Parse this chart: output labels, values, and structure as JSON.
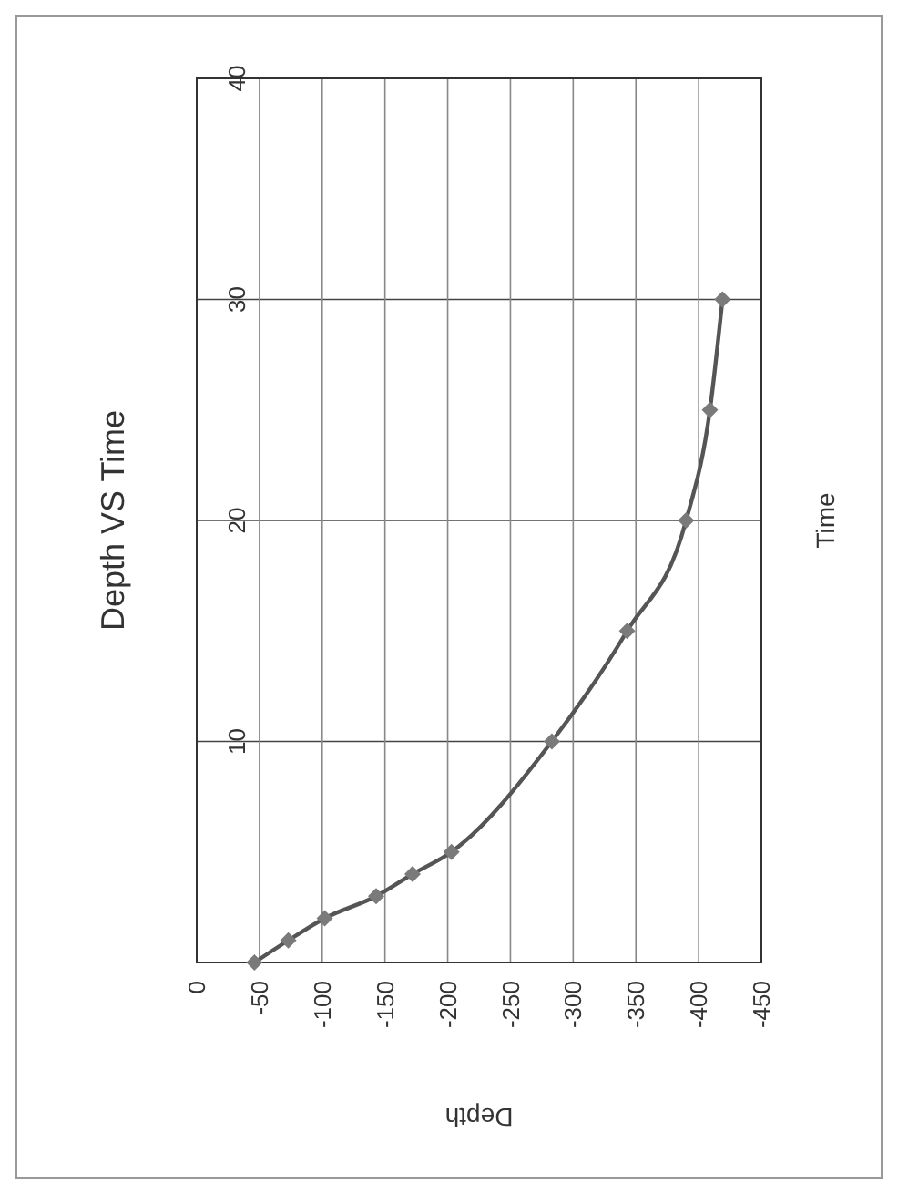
{
  "chart_data": {
    "type": "line",
    "title": "Depth VS Time",
    "xlabel": "Depth",
    "ylabel": "Time",
    "x": [
      -46,
      -73,
      -102,
      -143,
      -172,
      -203,
      -283,
      -343,
      -390,
      -409,
      -419
    ],
    "series": [
      {
        "color": "#555555",
        "values": [
          0,
          1,
          2,
          3,
          4,
          5,
          10,
          15,
          20,
          25,
          30
        ]
      }
    ],
    "xlim": [
      0,
      -450
    ],
    "xticks": [
      0,
      -50,
      -100,
      -150,
      -200,
      -250,
      -300,
      -350,
      -400,
      -450
    ],
    "ylim": [
      0,
      40
    ],
    "yticks": [
      10,
      20,
      30,
      40
    ],
    "grid": true,
    "marker": "diamond",
    "line_style": "solid"
  }
}
